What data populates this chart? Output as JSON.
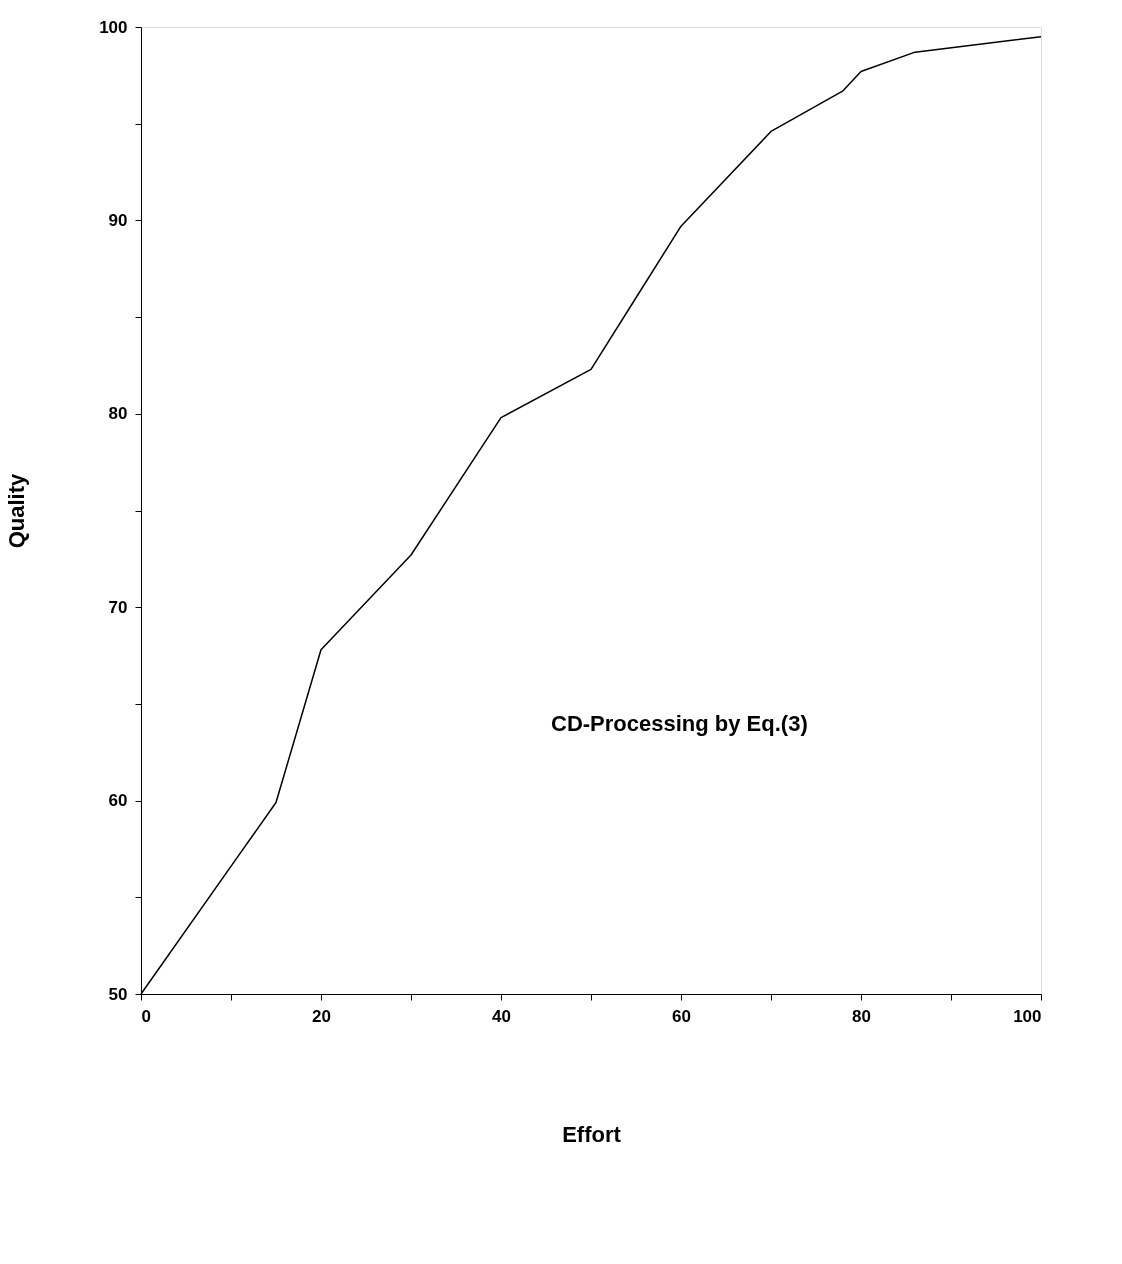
{
  "chart_data": {
    "type": "line",
    "xlabel": "Effort",
    "ylabel": "Quality",
    "annotations": [
      "CD-Processing by Eq.(3)"
    ],
    "x": [
      0,
      10.6,
      15,
      20,
      30,
      40,
      50,
      55,
      60,
      70,
      78,
      80,
      86,
      100
    ],
    "series": [
      {
        "color": "#000000",
        "values": [
          50,
          57,
          59.9,
          67.8,
          72.7,
          79.8,
          82.3,
          86,
          89.7,
          94.6,
          96.7,
          97.7,
          98.7,
          99.5
        ]
      }
    ],
    "xlim": [
      0,
      100
    ],
    "ylim": [
      50,
      100
    ],
    "xticks": [
      0,
      {
        "value": 10,
        "label": null
      },
      20,
      {
        "value": 30,
        "label": null
      },
      40,
      {
        "value": 50,
        "label": null
      },
      60,
      {
        "value": 70,
        "label": null
      },
      80,
      {
        "value": 90,
        "label": null
      },
      100
    ],
    "yticks": [
      50,
      {
        "value": 55,
        "label": null
      },
      60,
      {
        "value": 65,
        "label": null
      },
      70,
      {
        "value": 75,
        "label": null
      },
      80,
      {
        "value": 85,
        "label": null
      },
      90,
      {
        "value": 95,
        "label": null
      },
      100
    ],
    "grid": false,
    "legend": false,
    "marker": "none",
    "line_style": "solid"
  }
}
